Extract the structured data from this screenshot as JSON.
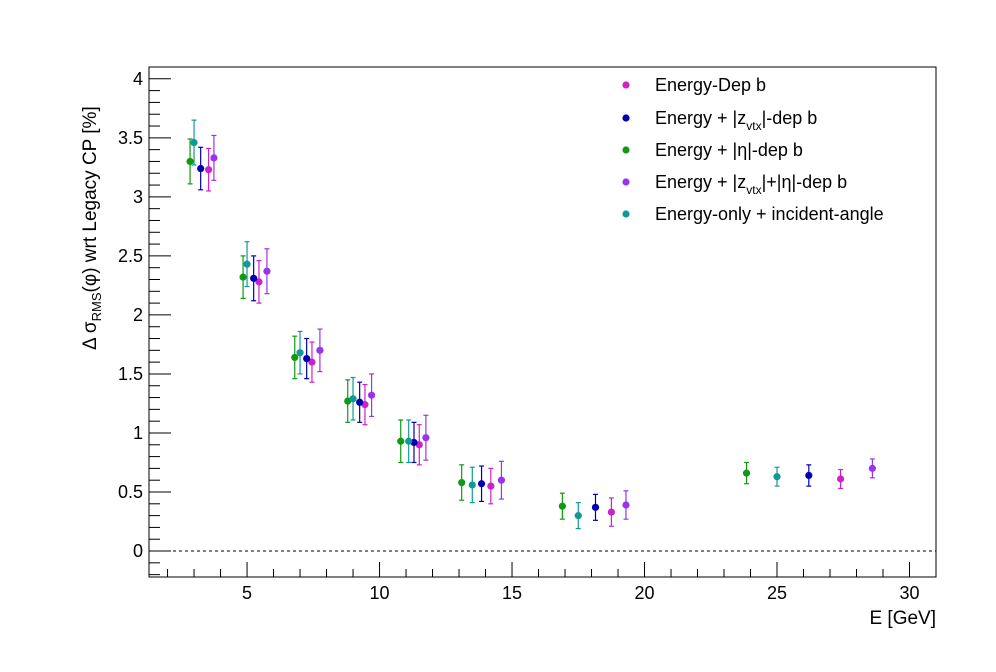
{
  "chart_data": {
    "type": "scatter",
    "title": "",
    "xlabel": "E  [GeV]",
    "ylabel": {
      "prefix": "Δ σ",
      "subscript": "RMS",
      "suffix": "(φ) wrt Legacy CP  [%]"
    },
    "xlim": [
      1.3,
      31.0
    ],
    "ylim": [
      -0.22,
      4.1
    ],
    "xticks": [
      5,
      10,
      15,
      20,
      25,
      30
    ],
    "yticks": [
      0,
      0.5,
      1,
      1.5,
      2,
      2.5,
      3,
      3.5,
      4
    ],
    "reference_line": {
      "y": 0,
      "style": "dashed"
    },
    "grid": false,
    "legend_position": "top-right",
    "series": [
      {
        "name": "Energy-Dep b",
        "color": "#cc22cc",
        "points": [
          {
            "x": 3.55,
            "y": 3.23,
            "err": 0.18
          },
          {
            "x": 5.45,
            "y": 2.28,
            "err": 0.18
          },
          {
            "x": 7.45,
            "y": 1.6,
            "err": 0.17
          },
          {
            "x": 9.45,
            "y": 1.24,
            "err": 0.17
          },
          {
            "x": 11.5,
            "y": 0.9,
            "err": 0.17
          },
          {
            "x": 14.2,
            "y": 0.55,
            "err": 0.15
          },
          {
            "x": 18.75,
            "y": 0.33,
            "err": 0.12
          },
          {
            "x": 27.4,
            "y": 0.61,
            "err": 0.08
          }
        ]
      },
      {
        "name": "Energy + |z_vtx|-dep b",
        "label_parts": [
          "Energy + |z",
          "vtx",
          "|-dep b"
        ],
        "color": "#0000b0",
        "points": [
          {
            "x": 3.25,
            "y": 3.24,
            "err": 0.18
          },
          {
            "x": 5.25,
            "y": 2.31,
            "err": 0.19
          },
          {
            "x": 7.25,
            "y": 1.63,
            "err": 0.17
          },
          {
            "x": 9.25,
            "y": 1.26,
            "err": 0.17
          },
          {
            "x": 11.3,
            "y": 0.92,
            "err": 0.17
          },
          {
            "x": 13.85,
            "y": 0.57,
            "err": 0.15
          },
          {
            "x": 18.15,
            "y": 0.37,
            "err": 0.11
          },
          {
            "x": 26.2,
            "y": 0.64,
            "err": 0.09
          }
        ]
      },
      {
        "name": "Energy + |η|-dep b",
        "color": "#119911",
        "points": [
          {
            "x": 2.85,
            "y": 3.3,
            "err": 0.19
          },
          {
            "x": 4.85,
            "y": 2.32,
            "err": 0.18
          },
          {
            "x": 6.8,
            "y": 1.64,
            "err": 0.18
          },
          {
            "x": 8.8,
            "y": 1.27,
            "err": 0.18
          },
          {
            "x": 10.8,
            "y": 0.93,
            "err": 0.18
          },
          {
            "x": 13.1,
            "y": 0.58,
            "err": 0.15
          },
          {
            "x": 16.9,
            "y": 0.38,
            "err": 0.11
          },
          {
            "x": 23.85,
            "y": 0.66,
            "err": 0.09
          }
        ]
      },
      {
        "name": "Energy + |z_vtx|+|η|-dep b",
        "label_parts": [
          "Energy + |z",
          "vtx",
          "|+|η|-dep b"
        ],
        "color": "#9933ee",
        "points": [
          {
            "x": 3.75,
            "y": 3.33,
            "err": 0.19
          },
          {
            "x": 5.75,
            "y": 2.37,
            "err": 0.19
          },
          {
            "x": 7.75,
            "y": 1.7,
            "err": 0.18
          },
          {
            "x": 9.7,
            "y": 1.32,
            "err": 0.18
          },
          {
            "x": 11.75,
            "y": 0.96,
            "err": 0.19
          },
          {
            "x": 14.6,
            "y": 0.6,
            "err": 0.16
          },
          {
            "x": 19.3,
            "y": 0.39,
            "err": 0.12
          },
          {
            "x": 28.6,
            "y": 0.7,
            "err": 0.08
          }
        ]
      },
      {
        "name": "Energy-only + incident-angle",
        "color": "#119999",
        "points": [
          {
            "x": 3.0,
            "y": 3.46,
            "err": 0.19
          },
          {
            "x": 5.0,
            "y": 2.43,
            "err": 0.19
          },
          {
            "x": 7.0,
            "y": 1.68,
            "err": 0.18
          },
          {
            "x": 9.0,
            "y": 1.29,
            "err": 0.18
          },
          {
            "x": 11.1,
            "y": 0.93,
            "err": 0.18
          },
          {
            "x": 13.5,
            "y": 0.56,
            "err": 0.15
          },
          {
            "x": 17.5,
            "y": 0.3,
            "err": 0.11
          },
          {
            "x": 25.0,
            "y": 0.63,
            "err": 0.08
          }
        ]
      }
    ]
  }
}
